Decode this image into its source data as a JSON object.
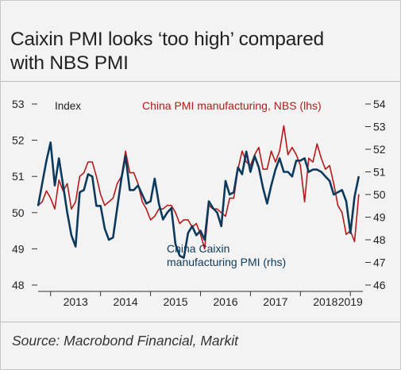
{
  "title_lines": [
    "Caixin PMI looks ‘too high’ compared",
    "with NBS PMI"
  ],
  "source": "Source: Macrobond Financial, Markit",
  "chart_data": {
    "type": "line",
    "title": "",
    "xlabel": "",
    "left_axis": {
      "label": "Index",
      "ylim": [
        48,
        53
      ],
      "ticks": [
        48,
        49,
        50,
        51,
        52,
        53
      ]
    },
    "right_axis": {
      "label": "",
      "ylim": [
        46,
        54
      ],
      "ticks": [
        46,
        47,
        48,
        49,
        50,
        51,
        52,
        53,
        54
      ]
    },
    "x_range": [
      "2012-10",
      "2019-04"
    ],
    "x_tick_labels": [
      "2013",
      "2014",
      "2015",
      "2016",
      "2017",
      "2018",
      "2019"
    ],
    "grid": false,
    "series": [
      {
        "name": "China PMI manufacturing, NBS (lhs)",
        "axis": "left",
        "color": "#b31b1b",
        "x": [
          "2012-10",
          "2012-11",
          "2012-12",
          "2013-01",
          "2013-02",
          "2013-03",
          "2013-04",
          "2013-05",
          "2013-06",
          "2013-07",
          "2013-08",
          "2013-09",
          "2013-10",
          "2013-11",
          "2013-12",
          "2014-01",
          "2014-02",
          "2014-03",
          "2014-04",
          "2014-05",
          "2014-06",
          "2014-07",
          "2014-08",
          "2014-09",
          "2014-10",
          "2014-11",
          "2014-12",
          "2015-01",
          "2015-02",
          "2015-03",
          "2015-04",
          "2015-05",
          "2015-06",
          "2015-07",
          "2015-08",
          "2015-09",
          "2015-10",
          "2015-11",
          "2015-12",
          "2016-01",
          "2016-02",
          "2016-03",
          "2016-04",
          "2016-05",
          "2016-06",
          "2016-07",
          "2016-08",
          "2016-09",
          "2016-10",
          "2016-11",
          "2016-12",
          "2017-01",
          "2017-02",
          "2017-03",
          "2017-04",
          "2017-05",
          "2017-06",
          "2017-07",
          "2017-08",
          "2017-09",
          "2017-10",
          "2017-11",
          "2017-12",
          "2018-01",
          "2018-02",
          "2018-03",
          "2018-04",
          "2018-05",
          "2018-06",
          "2018-07",
          "2018-08",
          "2018-09",
          "2018-10",
          "2018-11",
          "2018-12",
          "2019-01",
          "2019-02",
          "2019-03"
        ],
        "values": [
          50.2,
          50.3,
          50.6,
          50.4,
          50.1,
          50.9,
          50.6,
          50.8,
          50.1,
          50.3,
          51.0,
          51.1,
          51.4,
          51.4,
          51.0,
          50.5,
          50.2,
          50.3,
          50.4,
          50.8,
          51.0,
          51.7,
          51.1,
          51.1,
          50.8,
          50.3,
          50.1,
          49.8,
          49.9,
          50.1,
          50.1,
          50.2,
          50.2,
          50.0,
          49.7,
          49.8,
          49.8,
          49.6,
          49.7,
          49.4,
          49.0,
          50.2,
          50.1,
          50.1,
          50.0,
          49.9,
          50.4,
          50.4,
          51.2,
          51.7,
          51.4,
          51.3,
          51.6,
          51.8,
          51.2,
          51.2,
          51.7,
          51.4,
          51.7,
          52.4,
          51.6,
          51.8,
          51.6,
          51.3,
          50.3,
          51.5,
          51.4,
          51.9,
          51.5,
          51.2,
          51.3,
          50.8,
          50.2,
          50.0,
          49.4,
          49.5,
          49.2,
          50.5
        ]
      },
      {
        "name": "China Caixin manufacturing PMI (rhs)",
        "axis": "right",
        "color": "#0d3a5c",
        "x": [
          "2012-10",
          "2012-11",
          "2012-12",
          "2013-01",
          "2013-02",
          "2013-03",
          "2013-04",
          "2013-05",
          "2013-06",
          "2013-07",
          "2013-08",
          "2013-09",
          "2013-10",
          "2013-11",
          "2013-12",
          "2014-01",
          "2014-02",
          "2014-03",
          "2014-04",
          "2014-05",
          "2014-06",
          "2014-07",
          "2014-08",
          "2014-09",
          "2014-10",
          "2014-11",
          "2014-12",
          "2015-01",
          "2015-02",
          "2015-03",
          "2015-04",
          "2015-05",
          "2015-06",
          "2015-07",
          "2015-08",
          "2015-09",
          "2015-10",
          "2015-11",
          "2015-12",
          "2016-01",
          "2016-02",
          "2016-03",
          "2016-04",
          "2016-05",
          "2016-06",
          "2016-07",
          "2016-08",
          "2016-09",
          "2016-10",
          "2016-11",
          "2016-12",
          "2017-01",
          "2017-02",
          "2017-03",
          "2017-04",
          "2017-05",
          "2017-06",
          "2017-07",
          "2017-08",
          "2017-09",
          "2017-10",
          "2017-11",
          "2017-12",
          "2018-01",
          "2018-02",
          "2018-03",
          "2018-04",
          "2018-05",
          "2018-06",
          "2018-07",
          "2018-08",
          "2018-09",
          "2018-10",
          "2018-11",
          "2018-12",
          "2019-01",
          "2019-02",
          "2019-03"
        ],
        "values": [
          49.5,
          50.5,
          51.5,
          52.3,
          50.4,
          51.6,
          50.4,
          49.2,
          48.2,
          47.7,
          50.1,
          50.2,
          50.9,
          50.8,
          49.5,
          49.5,
          48.5,
          48.0,
          48.1,
          49.4,
          50.7,
          51.7,
          50.2,
          50.2,
          50.4,
          50.0,
          49.6,
          49.7,
          50.7,
          49.6,
          48.9,
          49.2,
          49.4,
          47.8,
          47.3,
          47.2,
          48.3,
          48.6,
          48.2,
          48.4,
          48.0,
          49.7,
          49.4,
          49.2,
          48.6,
          50.6,
          50.0,
          50.1,
          51.2,
          50.9,
          51.9,
          51.0,
          51.7,
          51.2,
          50.3,
          49.6,
          50.4,
          51.1,
          51.6,
          51.0,
          51.0,
          50.8,
          51.5,
          51.5,
          51.6,
          51.0,
          51.1,
          51.1,
          51.0,
          50.8,
          50.6,
          50.0,
          50.1,
          50.2,
          49.7,
          48.3,
          49.9,
          50.8
        ]
      }
    ]
  }
}
